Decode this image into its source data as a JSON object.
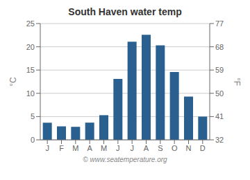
{
  "chart_data": {
    "type": "bar",
    "title": "South Haven water temp",
    "categories": [
      "J",
      "F",
      "M",
      "A",
      "M",
      "J",
      "J",
      "A",
      "S",
      "O",
      "N",
      "D"
    ],
    "values": [
      3.7,
      2.9,
      2.8,
      3.7,
      5.3,
      13.1,
      21.1,
      22.6,
      20.3,
      14.6,
      9.3,
      5.0
    ],
    "color": "#2a6090",
    "ylim": [
      0,
      25
    ],
    "yticks": [
      0,
      5,
      10,
      15,
      20,
      25
    ],
    "ylabel": "°C",
    "y2lim": [
      32,
      77
    ],
    "y2ticks": [
      32,
      41,
      50,
      59,
      68,
      77
    ],
    "y2label": "°F",
    "grid": true,
    "annotations": [
      "© www.seatemperature.org"
    ]
  }
}
